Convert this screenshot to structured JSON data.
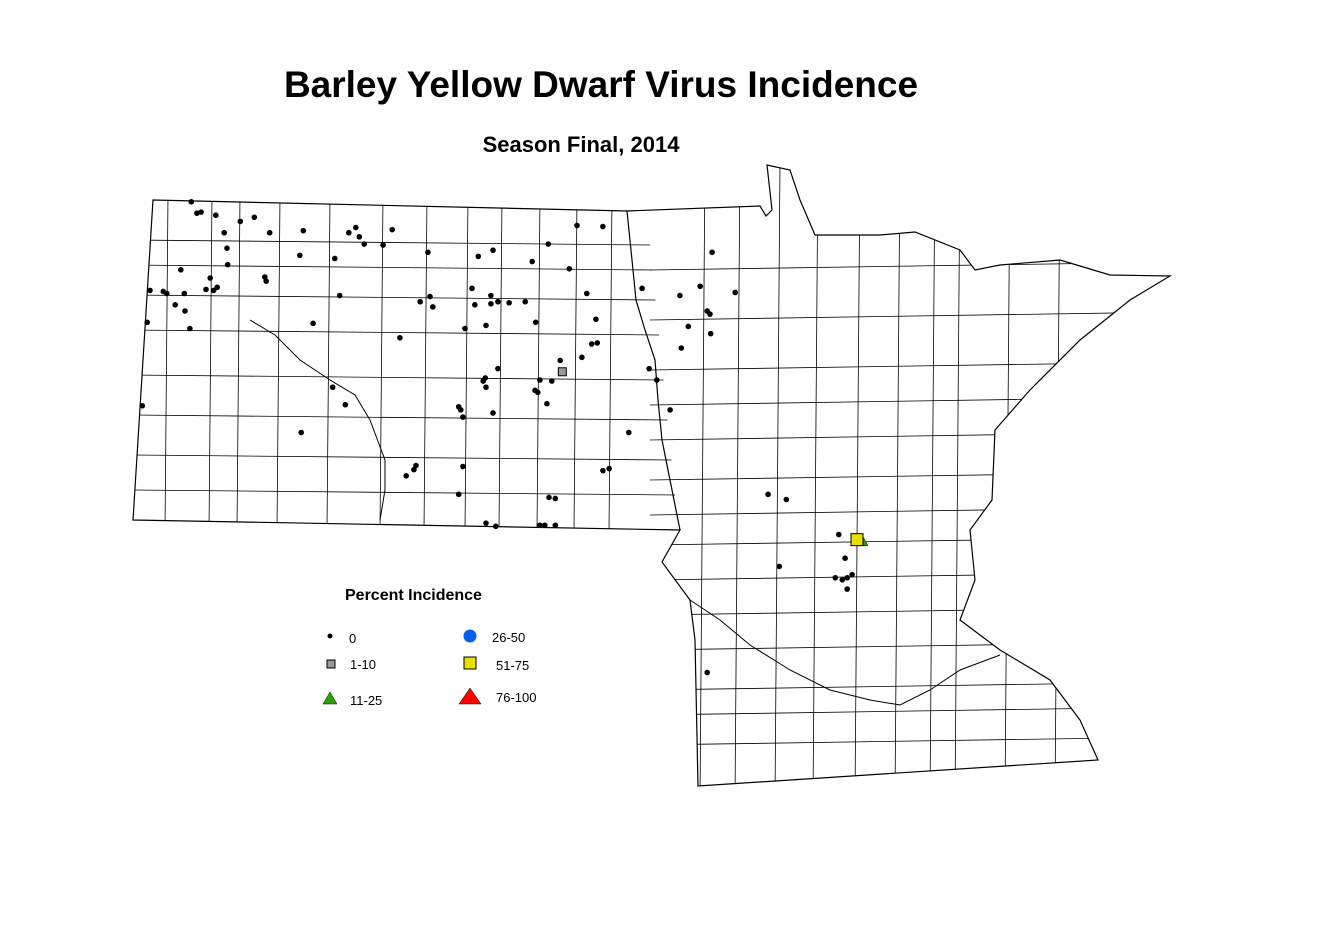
{
  "title": "Barley Yellow Dwarf Virus Incidence",
  "subtitle": "Season Final, 2014",
  "legend": {
    "title": "Percent Incidence",
    "classes": [
      {
        "label": "0",
        "symbol": "dot",
        "color": "#000000"
      },
      {
        "label": "1-10",
        "symbol": "square",
        "color": "#999999"
      },
      {
        "label": "11-25",
        "symbol": "triangle",
        "color": "#2e9e0e"
      },
      {
        "label": "26-50",
        "symbol": "circle",
        "color": "#0a5fe8"
      },
      {
        "label": "51-75",
        "symbol": "square",
        "color": "#e8e000"
      },
      {
        "label": "76-100",
        "symbol": "triangle",
        "color": "#ff0000"
      }
    ]
  },
  "regions": [
    "North Dakota",
    "Minnesota"
  ],
  "sites": {
    "class_0": [
      [
        -103.46,
        49.06
      ],
      [
        -103.38,
        48.95
      ],
      [
        -103.32,
        48.96
      ],
      [
        -103.11,
        48.93
      ],
      [
        -102.99,
        48.76
      ],
      [
        -102.95,
        48.61
      ],
      [
        -102.76,
        48.87
      ],
      [
        -102.56,
        48.91
      ],
      [
        -102.34,
        48.76
      ],
      [
        -101.86,
        48.78
      ],
      [
        -102.94,
        48.45
      ],
      [
        -103.61,
        48.4
      ],
      [
        -103.19,
        48.32
      ],
      [
        -104.05,
        48.2
      ],
      [
        -103.86,
        48.19
      ],
      [
        -103.81,
        48.17
      ],
      [
        -103.56,
        48.17
      ],
      [
        -103.25,
        48.21
      ],
      [
        -103.14,
        48.2
      ],
      [
        -103.09,
        48.23
      ],
      [
        -103.69,
        48.06
      ],
      [
        -103.55,
        48.0
      ],
      [
        -103.48,
        47.83
      ],
      [
        -104.09,
        47.89
      ],
      [
        -102.41,
        48.33
      ],
      [
        -102.39,
        48.29
      ],
      [
        -101.91,
        48.54
      ],
      [
        -101.72,
        47.88
      ],
      [
        -104.16,
        47.08
      ],
      [
        -101.41,
        48.51
      ],
      [
        -101.21,
        48.76
      ],
      [
        -101.11,
        48.81
      ],
      [
        -101.06,
        48.72
      ],
      [
        -100.99,
        48.65
      ],
      [
        -100.72,
        48.64
      ],
      [
        -100.59,
        48.79
      ],
      [
        -100.08,
        48.57
      ],
      [
        -101.34,
        48.15
      ],
      [
        -100.19,
        48.09
      ],
      [
        -100.05,
        48.14
      ],
      [
        -100.01,
        48.04
      ],
      [
        -99.36,
        48.53
      ],
      [
        -99.15,
        48.59
      ],
      [
        -99.45,
        48.22
      ],
      [
        -99.41,
        48.06
      ],
      [
        -99.25,
        47.86
      ],
      [
        -99.18,
        48.15
      ],
      [
        -99.18,
        48.07
      ],
      [
        -99.08,
        48.09
      ],
      [
        -98.92,
        48.08
      ],
      [
        -98.69,
        48.09
      ],
      [
        -98.59,
        48.48
      ],
      [
        -98.36,
        48.65
      ],
      [
        -98.06,
        48.41
      ],
      [
        -97.95,
        48.83
      ],
      [
        -97.58,
        48.82
      ],
      [
        -99.55,
        47.83
      ],
      [
        -98.54,
        47.89
      ],
      [
        -97.81,
        48.17
      ],
      [
        -97.68,
        47.92
      ],
      [
        -97.74,
        47.68
      ],
      [
        -97.66,
        47.69
      ],
      [
        -100.48,
        47.74
      ],
      [
        -98.19,
        47.52
      ],
      [
        -97.88,
        47.55
      ],
      [
        -99.08,
        47.44
      ],
      [
        -99.26,
        47.35
      ],
      [
        -99.29,
        47.32
      ],
      [
        -99.25,
        47.26
      ],
      [
        -98.48,
        47.33
      ],
      [
        -98.55,
        47.23
      ],
      [
        -98.51,
        47.21
      ],
      [
        -98.31,
        47.32
      ],
      [
        -98.38,
        47.1
      ],
      [
        -99.64,
        47.07
      ],
      [
        -99.61,
        47.04
      ],
      [
        -99.58,
        46.97
      ],
      [
        -99.15,
        47.01
      ],
      [
        -101.44,
        47.26
      ],
      [
        -101.26,
        47.09
      ],
      [
        -101.89,
        46.82
      ],
      [
        -97.21,
        46.82
      ],
      [
        -96.92,
        47.44
      ],
      [
        -96.81,
        47.33
      ],
      [
        -96.62,
        47.04
      ],
      [
        -97.02,
        48.22
      ],
      [
        -96.48,
        48.15
      ],
      [
        -96.19,
        48.24
      ],
      [
        -96.02,
        48.57
      ],
      [
        -95.69,
        48.18
      ],
      [
        -96.09,
        48.0
      ],
      [
        -96.05,
        47.97
      ],
      [
        -96.36,
        47.85
      ],
      [
        -96.04,
        47.78
      ],
      [
        -96.46,
        47.64
      ],
      [
        -100.25,
        46.5
      ],
      [
        -100.28,
        46.46
      ],
      [
        -100.39,
        46.4
      ],
      [
        -99.58,
        46.49
      ],
      [
        -99.64,
        46.22
      ],
      [
        -99.25,
        45.94
      ],
      [
        -99.11,
        45.91
      ],
      [
        -98.35,
        46.19
      ],
      [
        -98.26,
        46.18
      ],
      [
        -98.48,
        45.92
      ],
      [
        -98.41,
        45.92
      ],
      [
        -98.26,
        45.92
      ],
      [
        -97.58,
        46.45
      ],
      [
        -97.49,
        46.47
      ],
      [
        -95.22,
        46.22
      ],
      [
        -94.96,
        46.17
      ],
      [
        -96.09,
        44.49
      ],
      [
        -94.21,
        45.83
      ],
      [
        -94.26,
        45.41
      ],
      [
        -94.16,
        45.39
      ],
      [
        -94.09,
        45.41
      ],
      [
        -94.02,
        45.44
      ],
      [
        -94.12,
        45.6
      ],
      [
        -94.09,
        45.3
      ],
      [
        -95.06,
        45.52
      ]
    ],
    "class_1_10": [
      [
        -98.16,
        47.41
      ]
    ],
    "class_11_25": [
      [
        -93.88,
        45.77
      ]
    ],
    "class_51_75": [
      [
        -93.95,
        45.78
      ]
    ]
  }
}
